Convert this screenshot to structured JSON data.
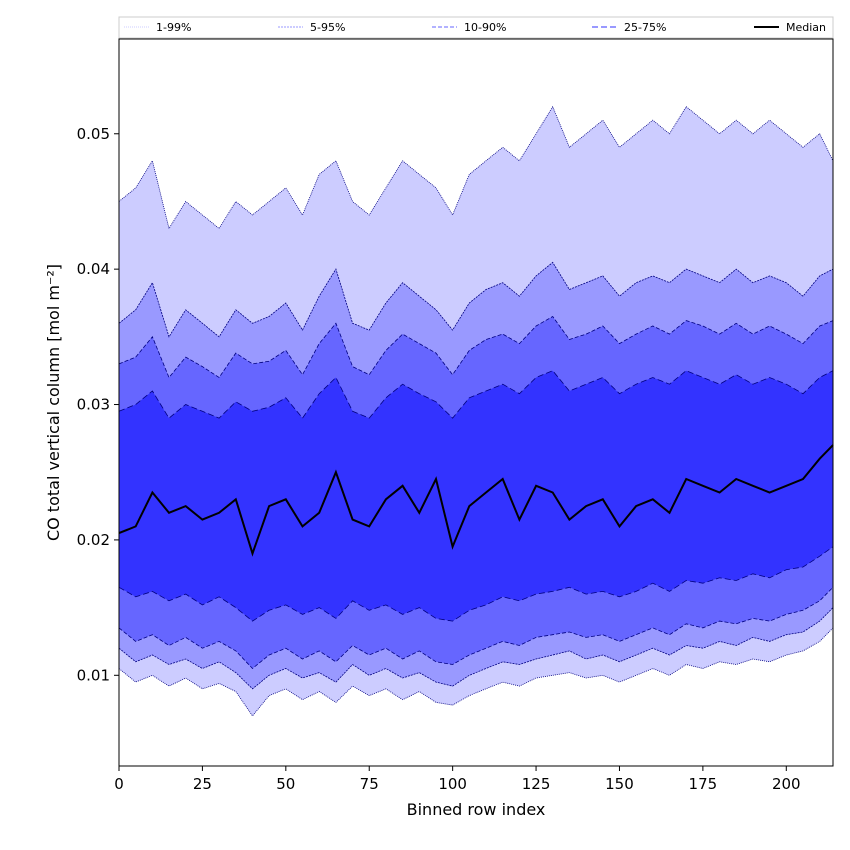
{
  "chart_data": {
    "type": "area",
    "title": "",
    "xlabel": "Binned row index",
    "ylabel": "CO total vertical column [mol m⁻²]",
    "xlim": [
      0,
      214
    ],
    "ylim": [
      0.0033,
      0.057
    ],
    "xticks": [
      0,
      25,
      50,
      75,
      100,
      125,
      150,
      175,
      200
    ],
    "yticks": [
      0.01,
      0.02,
      0.03,
      0.04,
      0.05
    ],
    "ytick_labels": [
      "0.01",
      "0.02",
      "0.03",
      "0.04",
      "0.05"
    ],
    "grid": false,
    "legend_position": "top",
    "colors": {
      "band_1_99": "#ccccff",
      "band_5_95": "#9999ff",
      "band_10_90": "#6666ff",
      "band_25_75": "#3333ff",
      "outline": "#000080",
      "median": "#000000"
    },
    "legend": [
      {
        "key": "p1_99",
        "label": "1-99%"
      },
      {
        "key": "p5_95",
        "label": "5-95%"
      },
      {
        "key": "p10_90",
        "label": "10-90%"
      },
      {
        "key": "p25_75",
        "label": "25-75%"
      },
      {
        "key": "median",
        "label": "Median"
      }
    ],
    "x": [
      0,
      5,
      10,
      15,
      20,
      25,
      30,
      35,
      40,
      45,
      50,
      55,
      60,
      65,
      70,
      75,
      80,
      85,
      90,
      95,
      100,
      105,
      110,
      115,
      120,
      125,
      130,
      135,
      140,
      145,
      150,
      155,
      160,
      165,
      170,
      175,
      180,
      185,
      190,
      195,
      200,
      205,
      210,
      214
    ],
    "series": [
      {
        "key": "p1_99",
        "label": "1-99%",
        "lower": [
          0.0105,
          0.0095,
          0.01,
          0.0092,
          0.0098,
          0.009,
          0.0094,
          0.0088,
          0.007,
          0.0085,
          0.009,
          0.0082,
          0.0088,
          0.008,
          0.0092,
          0.0085,
          0.009,
          0.0082,
          0.0088,
          0.008,
          0.0078,
          0.0085,
          0.009,
          0.0095,
          0.0092,
          0.0098,
          0.01,
          0.0102,
          0.0098,
          0.01,
          0.0095,
          0.01,
          0.0105,
          0.01,
          0.0108,
          0.0105,
          0.011,
          0.0108,
          0.0112,
          0.011,
          0.0115,
          0.0118,
          0.0125,
          0.0135
        ],
        "upper": [
          0.045,
          0.046,
          0.048,
          0.043,
          0.045,
          0.044,
          0.043,
          0.045,
          0.044,
          0.045,
          0.046,
          0.044,
          0.047,
          0.048,
          0.045,
          0.044,
          0.046,
          0.048,
          0.047,
          0.046,
          0.044,
          0.047,
          0.048,
          0.049,
          0.048,
          0.05,
          0.052,
          0.049,
          0.05,
          0.051,
          0.049,
          0.05,
          0.051,
          0.05,
          0.052,
          0.051,
          0.05,
          0.051,
          0.05,
          0.051,
          0.05,
          0.049,
          0.05,
          0.048
        ]
      },
      {
        "key": "p5_95",
        "label": "5-95%",
        "lower": [
          0.012,
          0.011,
          0.0115,
          0.0108,
          0.0112,
          0.0105,
          0.011,
          0.0102,
          0.009,
          0.01,
          0.0105,
          0.0098,
          0.0102,
          0.0095,
          0.0108,
          0.01,
          0.0105,
          0.0098,
          0.0102,
          0.0095,
          0.0092,
          0.01,
          0.0105,
          0.011,
          0.0108,
          0.0112,
          0.0115,
          0.0118,
          0.0112,
          0.0115,
          0.011,
          0.0115,
          0.012,
          0.0115,
          0.0122,
          0.012,
          0.0125,
          0.0122,
          0.0128,
          0.0125,
          0.013,
          0.0132,
          0.014,
          0.015
        ],
        "upper": [
          0.036,
          0.037,
          0.039,
          0.035,
          0.037,
          0.036,
          0.035,
          0.037,
          0.036,
          0.0365,
          0.0375,
          0.0355,
          0.038,
          0.04,
          0.036,
          0.0355,
          0.0375,
          0.039,
          0.038,
          0.037,
          0.0355,
          0.0375,
          0.0385,
          0.039,
          0.038,
          0.0395,
          0.0405,
          0.0385,
          0.039,
          0.0395,
          0.038,
          0.039,
          0.0395,
          0.039,
          0.04,
          0.0395,
          0.039,
          0.04,
          0.039,
          0.0395,
          0.039,
          0.038,
          0.0395,
          0.04
        ]
      },
      {
        "key": "p10_90",
        "label": "10-90%",
        "lower": [
          0.0135,
          0.0125,
          0.013,
          0.0122,
          0.0128,
          0.012,
          0.0125,
          0.0118,
          0.0105,
          0.0115,
          0.012,
          0.0112,
          0.0118,
          0.011,
          0.0122,
          0.0115,
          0.012,
          0.0112,
          0.0118,
          0.011,
          0.0108,
          0.0115,
          0.012,
          0.0125,
          0.0122,
          0.0128,
          0.013,
          0.0132,
          0.0128,
          0.013,
          0.0125,
          0.013,
          0.0135,
          0.013,
          0.0138,
          0.0135,
          0.014,
          0.0138,
          0.0142,
          0.014,
          0.0145,
          0.0148,
          0.0155,
          0.0165
        ],
        "upper": [
          0.033,
          0.0335,
          0.035,
          0.032,
          0.0335,
          0.0328,
          0.032,
          0.0338,
          0.033,
          0.0332,
          0.034,
          0.0322,
          0.0345,
          0.036,
          0.0328,
          0.0322,
          0.034,
          0.0352,
          0.0345,
          0.0338,
          0.0322,
          0.034,
          0.0348,
          0.0352,
          0.0345,
          0.0358,
          0.0365,
          0.0348,
          0.0352,
          0.0358,
          0.0345,
          0.0352,
          0.0358,
          0.0352,
          0.0362,
          0.0358,
          0.0352,
          0.036,
          0.0352,
          0.0358,
          0.0352,
          0.0345,
          0.0358,
          0.0362
        ]
      },
      {
        "key": "p25_75",
        "label": "25-75%",
        "lower": [
          0.0165,
          0.0158,
          0.0162,
          0.0155,
          0.016,
          0.0152,
          0.0158,
          0.015,
          0.014,
          0.0148,
          0.0152,
          0.0145,
          0.015,
          0.0142,
          0.0155,
          0.0148,
          0.0152,
          0.0145,
          0.015,
          0.0142,
          0.014,
          0.0148,
          0.0152,
          0.0158,
          0.0155,
          0.016,
          0.0162,
          0.0165,
          0.016,
          0.0162,
          0.0158,
          0.0162,
          0.0168,
          0.0162,
          0.017,
          0.0168,
          0.0172,
          0.017,
          0.0175,
          0.0172,
          0.0178,
          0.018,
          0.0188,
          0.0195
        ],
        "upper": [
          0.0295,
          0.03,
          0.031,
          0.029,
          0.03,
          0.0295,
          0.029,
          0.0302,
          0.0295,
          0.0298,
          0.0305,
          0.029,
          0.0308,
          0.032,
          0.0295,
          0.029,
          0.0305,
          0.0315,
          0.0308,
          0.0302,
          0.029,
          0.0305,
          0.031,
          0.0315,
          0.0308,
          0.032,
          0.0325,
          0.031,
          0.0315,
          0.032,
          0.0308,
          0.0315,
          0.032,
          0.0315,
          0.0325,
          0.032,
          0.0315,
          0.0322,
          0.0315,
          0.032,
          0.0315,
          0.0308,
          0.032,
          0.0325
        ]
      },
      {
        "key": "median",
        "label": "Median",
        "values": [
          0.0205,
          0.021,
          0.0235,
          0.022,
          0.0225,
          0.0215,
          0.022,
          0.023,
          0.019,
          0.0225,
          0.023,
          0.021,
          0.022,
          0.025,
          0.0215,
          0.021,
          0.023,
          0.024,
          0.022,
          0.0245,
          0.0195,
          0.0225,
          0.0235,
          0.0245,
          0.0215,
          0.024,
          0.0235,
          0.0215,
          0.0225,
          0.023,
          0.021,
          0.0225,
          0.023,
          0.022,
          0.0245,
          0.024,
          0.0235,
          0.0245,
          0.024,
          0.0235,
          0.024,
          0.0245,
          0.026,
          0.027
        ]
      }
    ]
  }
}
